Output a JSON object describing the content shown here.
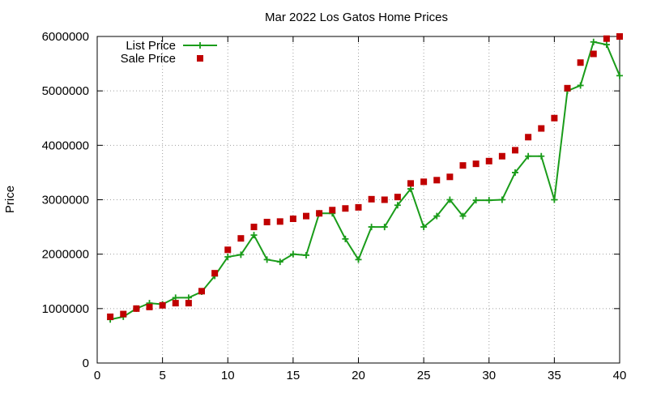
{
  "chart_data": {
    "type": "line",
    "title": "Mar 2022 Los Gatos Home Prices",
    "xlabel": "",
    "ylabel": "Price",
    "xlim": [
      0,
      40
    ],
    "ylim": [
      0,
      6000000
    ],
    "x_ticks": [
      0,
      5,
      10,
      15,
      20,
      25,
      30,
      35,
      40
    ],
    "y_ticks": [
      0,
      1000000,
      2000000,
      3000000,
      4000000,
      5000000,
      6000000
    ],
    "x_tick_labels": [
      "0",
      "5",
      "10",
      "15",
      "20",
      "25",
      "30",
      "35",
      "40"
    ],
    "y_tick_labels": [
      "0",
      "1000000",
      "2000000",
      "3000000",
      "4000000",
      "5000000",
      "6000000"
    ],
    "grid": true,
    "legend_position": "top-left",
    "series": [
      {
        "name": "List Price",
        "style": "line-plus",
        "color": "#1a9c1a",
        "x": [
          1,
          2,
          3,
          4,
          5,
          6,
          7,
          8,
          9,
          10,
          11,
          12,
          13,
          14,
          15,
          16,
          17,
          18,
          19,
          20,
          21,
          22,
          23,
          24,
          25,
          26,
          27,
          28,
          29,
          30,
          31,
          32,
          33,
          34,
          35,
          36,
          37,
          38,
          39,
          40
        ],
        "values": [
          800000,
          850000,
          1000000,
          1100000,
          1080000,
          1200000,
          1200000,
          1310000,
          1600000,
          1950000,
          1990000,
          2350000,
          1900000,
          1860000,
          2000000,
          1980000,
          2750000,
          2750000,
          2280000,
          1900000,
          2500000,
          2500000,
          2900000,
          3200000,
          2500000,
          2700000,
          3000000,
          2700000,
          2990000,
          2990000,
          3000000,
          3500000,
          3800000,
          3800000,
          3000000,
          5000000,
          5100000,
          5900000,
          5850000,
          5280000
        ]
      },
      {
        "name": "Sale Price",
        "style": "square-markers",
        "color": "#c00000",
        "x": [
          1,
          2,
          3,
          4,
          5,
          6,
          7,
          8,
          9,
          10,
          11,
          12,
          13,
          14,
          15,
          16,
          17,
          18,
          19,
          20,
          21,
          22,
          23,
          24,
          25,
          26,
          27,
          28,
          29,
          30,
          31,
          32,
          33,
          34,
          35,
          36,
          37,
          38,
          39,
          40
        ],
        "values": [
          850000,
          900000,
          1000000,
          1030000,
          1060000,
          1100000,
          1100000,
          1320000,
          1650000,
          2080000,
          2290000,
          2500000,
          2590000,
          2600000,
          2650000,
          2700000,
          2750000,
          2810000,
          2840000,
          2860000,
          3010000,
          3000000,
          3050000,
          3300000,
          3330000,
          3360000,
          3420000,
          3630000,
          3660000,
          3710000,
          3800000,
          3910000,
          4150000,
          4310000,
          4500000,
          5050000,
          5520000,
          5680000,
          5960000,
          6000000
        ]
      }
    ]
  }
}
